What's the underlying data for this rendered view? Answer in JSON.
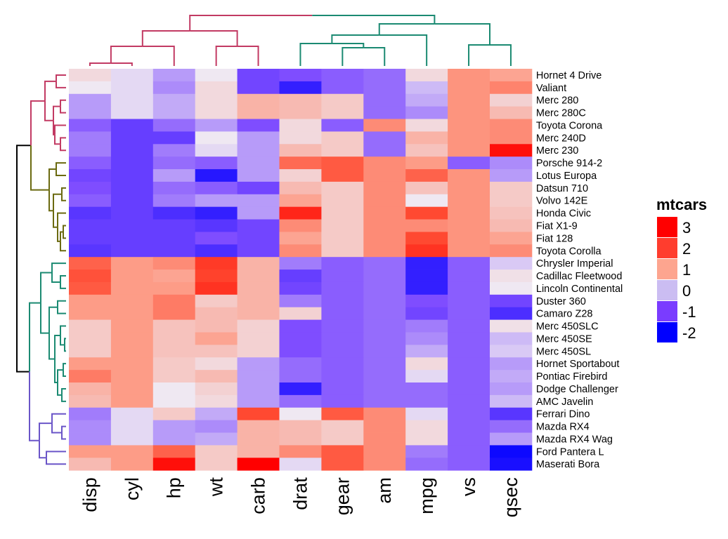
{
  "chart_data": {
    "type": "heatmap",
    "title": "",
    "xlabel": "",
    "ylabel": "",
    "columns": [
      "disp",
      "cyl",
      "hp",
      "wt",
      "carb",
      "drat",
      "gear",
      "am",
      "mpg",
      "vs",
      "qsec"
    ],
    "rows": [
      "Hornet 4 Drive",
      "Valiant",
      "Merc 280",
      "Merc 280C",
      "Toyota Corona",
      "Merc 240D",
      "Merc 230",
      "Porsche 914-2",
      "Lotus Europa",
      "Datsun 710",
      "Volvo 142E",
      "Honda Civic",
      "Fiat X1-9",
      "Fiat 128",
      "Toyota Corolla",
      "Chrysler Imperial",
      "Cadillac Fleetwood",
      "Lincoln Continental",
      "Duster 360",
      "Camaro Z28",
      "Merc 450SLC",
      "Merc 450SE",
      "Merc 450SL",
      "Hornet Sportabout",
      "Pontiac Firebird",
      "Dodge Challenger",
      "AMC Javelin",
      "Ferrari Dino",
      "Mazda RX4",
      "Mazda RX4 Wag",
      "Ford Pantera L",
      "Maserati Bora"
    ],
    "values": [
      [
        0.2,
        -0.1,
        -0.5,
        -0.0,
        -1.1,
        -1.0,
        -0.9,
        -0.8,
        0.2,
        1.1,
        0.9
      ],
      [
        -0.0,
        -0.1,
        -0.6,
        0.2,
        -1.1,
        -1.6,
        -0.9,
        -0.8,
        -0.3,
        1.1,
        1.3
      ],
      [
        -0.5,
        -0.1,
        -0.4,
        0.2,
        0.7,
        0.6,
        0.4,
        -0.8,
        -0.4,
        1.1,
        0.3
      ],
      [
        -0.5,
        -0.1,
        -0.4,
        0.2,
        0.7,
        0.6,
        0.4,
        -0.8,
        -0.6,
        1.1,
        0.6
      ],
      [
        -0.9,
        -1.2,
        -0.8,
        -0.5,
        -1.0,
        0.2,
        -0.9,
        1.2,
        0.2,
        1.1,
        1.2
      ],
      [
        -0.7,
        -1.2,
        -1.2,
        -0.0,
        -0.5,
        0.2,
        0.4,
        -0.8,
        0.7,
        1.1,
        1.2
      ],
      [
        -0.7,
        -1.2,
        -0.7,
        -0.1,
        -0.5,
        0.6,
        0.4,
        -0.8,
        0.5,
        1.1,
        2.8
      ],
      [
        -0.9,
        -1.2,
        -0.8,
        -0.9,
        -0.5,
        1.6,
        1.8,
        1.2,
        1.0,
        -0.9,
        -0.6
      ],
      [
        -1.1,
        -1.2,
        -0.5,
        -1.7,
        -0.5,
        0.3,
        1.8,
        1.2,
        1.7,
        1.1,
        -0.5
      ],
      [
        -1.0,
        -1.2,
        -0.8,
        -0.9,
        -1.1,
        0.6,
        0.4,
        1.2,
        0.5,
        1.1,
        0.4
      ],
      [
        -0.9,
        -1.2,
        -0.7,
        -0.5,
        -0.5,
        0.9,
        0.4,
        1.2,
        -0.0,
        1.1,
        0.4
      ],
      [
        -1.3,
        -1.2,
        -1.4,
        -1.6,
        -0.5,
        2.5,
        0.4,
        1.2,
        2.0,
        1.1,
        0.5
      ],
      [
        -1.2,
        -1.2,
        -1.2,
        -1.3,
        -1.1,
        1.2,
        0.4,
        1.2,
        1.2,
        1.1,
        0.6
      ],
      [
        -1.2,
        -1.2,
        -1.2,
        -1.0,
        -1.1,
        0.9,
        0.4,
        1.2,
        2.0,
        1.1,
        0.9
      ],
      [
        -1.3,
        -1.2,
        -1.2,
        -1.4,
        -1.1,
        1.2,
        0.4,
        1.2,
        2.3,
        1.1,
        1.2
      ],
      [
        1.7,
        1.0,
        1.2,
        2.2,
        0.7,
        -0.7,
        -0.9,
        -0.8,
        -1.6,
        -0.9,
        -0.2
      ],
      [
        1.9,
        1.0,
        0.9,
        2.1,
        0.7,
        -1.2,
        -0.9,
        -0.8,
        -1.6,
        -0.9,
        0.1
      ],
      [
        1.8,
        1.0,
        1.0,
        2.3,
        0.7,
        -1.1,
        -0.9,
        -0.8,
        -1.6,
        -0.9,
        -0.0
      ],
      [
        1.0,
        1.0,
        1.4,
        0.4,
        0.7,
        -0.7,
        -0.9,
        -0.8,
        -1.0,
        -0.9,
        -1.1
      ],
      [
        1.0,
        1.0,
        1.4,
        0.6,
        0.7,
        0.3,
        -0.9,
        -0.8,
        -1.1,
        -0.9,
        -1.4
      ],
      [
        0.4,
        1.0,
        0.5,
        0.6,
        0.3,
        -1.0,
        -0.9,
        -0.8,
        -0.7,
        -0.9,
        0.1
      ],
      [
        0.4,
        1.0,
        0.5,
        0.9,
        0.3,
        -1.0,
        -0.9,
        -0.8,
        -0.6,
        -0.9,
        -0.3
      ],
      [
        0.4,
        1.0,
        0.5,
        0.5,
        0.3,
        -1.0,
        -0.9,
        -0.8,
        -0.4,
        -0.9,
        -0.2
      ],
      [
        1.0,
        1.0,
        0.4,
        0.2,
        -0.5,
        -0.8,
        -0.9,
        -0.8,
        0.2,
        -0.9,
        -0.5
      ],
      [
        1.4,
        1.0,
        0.4,
        0.6,
        -0.5,
        -0.8,
        -0.9,
        -0.8,
        -0.1,
        -0.9,
        -0.4
      ],
      [
        0.7,
        1.0,
        0.0,
        0.3,
        -0.5,
        -1.6,
        -0.9,
        -0.8,
        -0.8,
        -0.9,
        -0.5
      ],
      [
        0.6,
        1.0,
        0.0,
        0.2,
        -0.5,
        -0.8,
        -0.9,
        -0.8,
        -0.8,
        -0.9,
        -0.3
      ],
      [
        -0.7,
        -0.1,
        0.4,
        -0.4,
        2.0,
        0.0,
        1.8,
        1.2,
        -0.1,
        -0.9,
        -1.3
      ],
      [
        -0.6,
        -0.1,
        -0.5,
        -0.6,
        0.7,
        0.6,
        0.4,
        1.2,
        0.2,
        -0.9,
        -0.8
      ],
      [
        -0.6,
        -0.1,
        -0.5,
        -0.4,
        0.7,
        0.6,
        0.4,
        1.2,
        0.2,
        -0.9,
        -0.5
      ],
      [
        1.0,
        1.0,
        1.7,
        0.4,
        0.7,
        1.2,
        1.8,
        1.2,
        -0.7,
        -0.9,
        -1.9
      ],
      [
        0.6,
        1.0,
        2.8,
        0.4,
        3.2,
        -0.1,
        1.8,
        1.2,
        -0.8,
        -0.9,
        -1.8
      ]
    ],
    "color_scale": {
      "stops": [
        {
          "v": -2,
          "c": "#0000ff"
        },
        {
          "v": -1,
          "c": "#7f4dff"
        },
        {
          "v": 0,
          "c": "#efe8f2"
        },
        {
          "v": 1,
          "c": "#fd9c87"
        },
        {
          "v": 2,
          "c": "#ff4931"
        },
        {
          "v": 3,
          "c": "#ff0000"
        }
      ]
    },
    "legend": {
      "title": "mtcars",
      "entries": [
        {
          "label": "3",
          "color": "#ff0000"
        },
        {
          "label": "2",
          "color": "#ff3d2e"
        },
        {
          "label": "1",
          "color": "#fda58f"
        },
        {
          "label": "0",
          "color": "#cbbdf2"
        },
        {
          "label": "-1",
          "color": "#7a3cff"
        },
        {
          "label": "-2",
          "color": "#0000ff"
        }
      ],
      "position": "right"
    },
    "column_clusters": [
      {
        "color": "#c23a63",
        "columns": [
          "disp",
          "cyl",
          "hp",
          "wt",
          "carb"
        ]
      },
      {
        "color": "#1b8a72",
        "columns": [
          "drat",
          "gear",
          "am",
          "mpg",
          "vs",
          "qsec"
        ]
      }
    ],
    "row_clusters": [
      {
        "color": "#c23a63",
        "rows": [
          "Hornet 4 Drive",
          "Valiant",
          "Merc 280",
          "Merc 280C",
          "Toyota Corona",
          "Merc 240D",
          "Merc 230"
        ]
      },
      {
        "color": "#6b6a10",
        "rows": [
          "Porsche 914-2",
          "Lotus Europa",
          "Datsun 710",
          "Volvo 142E",
          "Honda Civic",
          "Fiat X1-9",
          "Fiat 128",
          "Toyota Corolla"
        ]
      },
      {
        "color": "#1b8a72",
        "rows": [
          "Chrysler Imperial",
          "Cadillac Fleetwood",
          "Lincoln Continental",
          "Duster 360",
          "Camaro Z28",
          "Merc 450SLC",
          "Merc 450SE",
          "Merc 450SL",
          "Hornet Sportabout",
          "Pontiac Firebird",
          "Dodge Challenger",
          "AMC Javelin"
        ]
      },
      {
        "color": "#6a55c8",
        "rows": [
          "Ferrari Dino",
          "Mazda RX4",
          "Mazda RX4 Wag",
          "Ford Pantera L",
          "Maserati Bora"
        ]
      }
    ],
    "dendrogram_root_color": "#000000"
  }
}
